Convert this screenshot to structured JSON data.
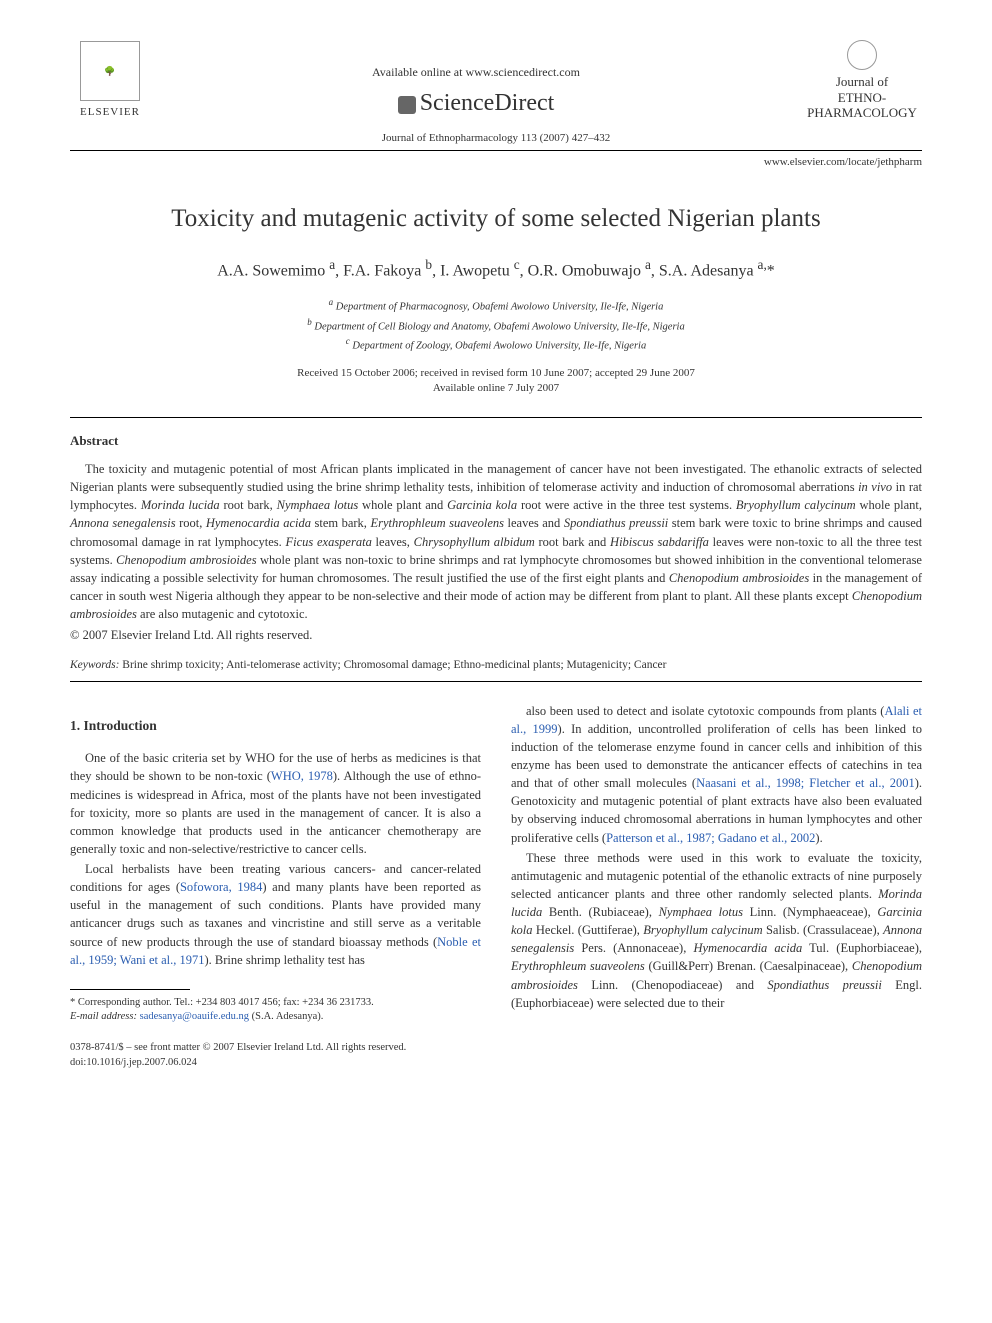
{
  "header": {
    "available_online": "Available online at www.sciencedirect.com",
    "sciencedirect": "ScienceDirect",
    "elsevier": "ELSEVIER",
    "journal_ref": "Journal of Ethnopharmacology 113 (2007) 427–432",
    "journal_url": "www.elsevier.com/locate/jethpharm",
    "journal_logo_line1": "Journal of",
    "journal_logo_line2": "ETHNO-",
    "journal_logo_line3": "PHARMACOLOGY"
  },
  "article": {
    "title": "Toxicity and mutagenic activity of some selected Nigerian plants",
    "authors_html": "A.A. Sowemimo <sup>a</sup>, F.A. Fakoya <sup>b</sup>, I. Awopetu <sup>c</sup>, O.R. Omobuwajo <sup>a</sup>, S.A. Adesanya <sup>a,</sup>*",
    "affiliations": [
      "a Department of Pharmacognosy, Obafemi Awolowo University, Ile-Ife, Nigeria",
      "b Department of Cell Biology and Anatomy, Obafemi Awolowo University, Ile-Ife, Nigeria",
      "c Department of Zoology, Obafemi Awolowo University, Ile-Ife, Nigeria"
    ],
    "dates_line1": "Received 15 October 2006; received in revised form 10 June 2007; accepted 29 June 2007",
    "dates_line2": "Available online 7 July 2007"
  },
  "abstract": {
    "heading": "Abstract",
    "body": "The toxicity and mutagenic potential of most African plants implicated in the management of cancer have not been investigated. The ethanolic extracts of selected Nigerian plants were subsequently studied using the brine shrimp lethality tests, inhibition of telomerase activity and induction of chromosomal aberrations <i>in vivo</i> in rat lymphocytes. <i>Morinda lucida</i> root bark, <i>Nymphaea lotus</i> whole plant and <i>Garcinia kola</i> root were active in the three test systems. <i>Bryophyllum calycinum</i> whole plant, <i>Annona senegalensis</i> root, <i>Hymenocardia acida</i> stem bark, <i>Erythrophleum suaveolens</i> leaves and <i>Spondiathus preussii</i> stem bark were toxic to brine shrimps and caused chromosomal damage in rat lymphocytes. <i>Ficus exasperata</i> leaves, <i>Chrysophyllum albidum</i> root bark and <i>Hibiscus sabdariffa</i> leaves were non-toxic to all the three test systems. <i>Chenopodium ambrosioides</i> whole plant was non-toxic to brine shrimps and rat lymphocyte chromosomes but showed inhibition in the conventional telomerase assay indicating a possible selectivity for human chromosomes. The result justified the use of the first eight plants and <i>Chenopodium ambrosioides</i> in the management of cancer in south west Nigeria although they appear to be non-selective and their mode of action may be different from plant to plant. All these plants except <i>Chenopodium ambrosioides</i> are also mutagenic and cytotoxic.",
    "copyright": "© 2007 Elsevier Ireland Ltd. All rights reserved."
  },
  "keywords": {
    "label": "Keywords:",
    "text": "Brine shrimp toxicity; Anti-telomerase activity; Chromosomal damage; Ethno-medicinal plants; Mutagenicity; Cancer"
  },
  "intro": {
    "heading": "1.  Introduction",
    "p1": "One of the basic criteria set by WHO for the use of herbs as medicines is that they should be shown to be non-toxic (<span class=\"link\">WHO, 1978</span>). Although the use of ethno-medicines is widespread in Africa, most of the plants have not been investigated for toxicity, more so plants are used in the management of cancer. It is also a common knowledge that products used in the anticancer chemotherapy are generally toxic and non-selective/restrictive to cancer cells.",
    "p2": "Local herbalists have been treating various cancers- and cancer-related conditions for ages (<span class=\"link\">Sofowora, 1984</span>) and many plants have been reported as useful in the management of such conditions. Plants have provided many anticancer drugs such as taxanes and vincristine and still serve as a veritable source of new products through the use of standard bioassay methods (<span class=\"link\">Noble et al., 1959; Wani et al., 1971</span>). Brine shrimp lethality test has",
    "p3": "also been used to detect and isolate cytotoxic compounds from plants (<span class=\"link\">Alali et al., 1999</span>). In addition, uncontrolled proliferation of cells has been linked to induction of the telomerase enzyme found in cancer cells and inhibition of this enzyme has been used to demonstrate the anticancer effects of catechins in tea and that of other small molecules (<span class=\"link\">Naasani et al., 1998; Fletcher et al., 2001</span>). Genotoxicity and mutagenic potential of plant extracts have also been evaluated by observing induced chromosomal aberrations in human lymphocytes and other proliferative cells (<span class=\"link\">Patterson et al., 1987; Gadano et al., 2002</span>).",
    "p4": "These three methods were used in this work to evaluate the toxicity, antimutagenic and mutagenic potential of the ethanolic extracts of nine purposely selected anticancer plants and three other randomly selected plants. <i>Morinda lucida</i> Benth. (Rubiaceae), <i>Nymphaea lotus</i> Linn. (Nymphaeaceae), <i>Garcinia kola</i> Heckel. (Guttiferae), <i>Bryophyllum calycinum</i> Salisb. (Crassulaceae), <i>Annona senegalensis</i> Pers. (Annonaceae), <i>Hymenocardia acida</i> Tul. (Euphorbiaceae), <i>Erythrophleum suaveolens</i> (Guill&Perr) Brenan. (Caesalpinaceae), <i>Chenopodium ambrosioides</i> Linn. (Chenopodiaceae) and <i>Spondiathus preussii</i> Engl. (Euphorbiaceae) were selected due to their"
  },
  "footnote": {
    "corr": "* Corresponding author. Tel.: +234 803 4017 456; fax: +234 36 231733.",
    "email_label": "E-mail address:",
    "email": "sadesanya@oauife.edu.ng",
    "email_suffix": "(S.A. Adesanya)."
  },
  "footer": {
    "line1": "0378-8741/$ – see front matter © 2007 Elsevier Ireland Ltd. All rights reserved.",
    "doi": "doi:10.1016/j.jep.2007.06.024"
  },
  "colors": {
    "link": "#2a5db0",
    "text": "#333333",
    "rule": "#000000"
  }
}
